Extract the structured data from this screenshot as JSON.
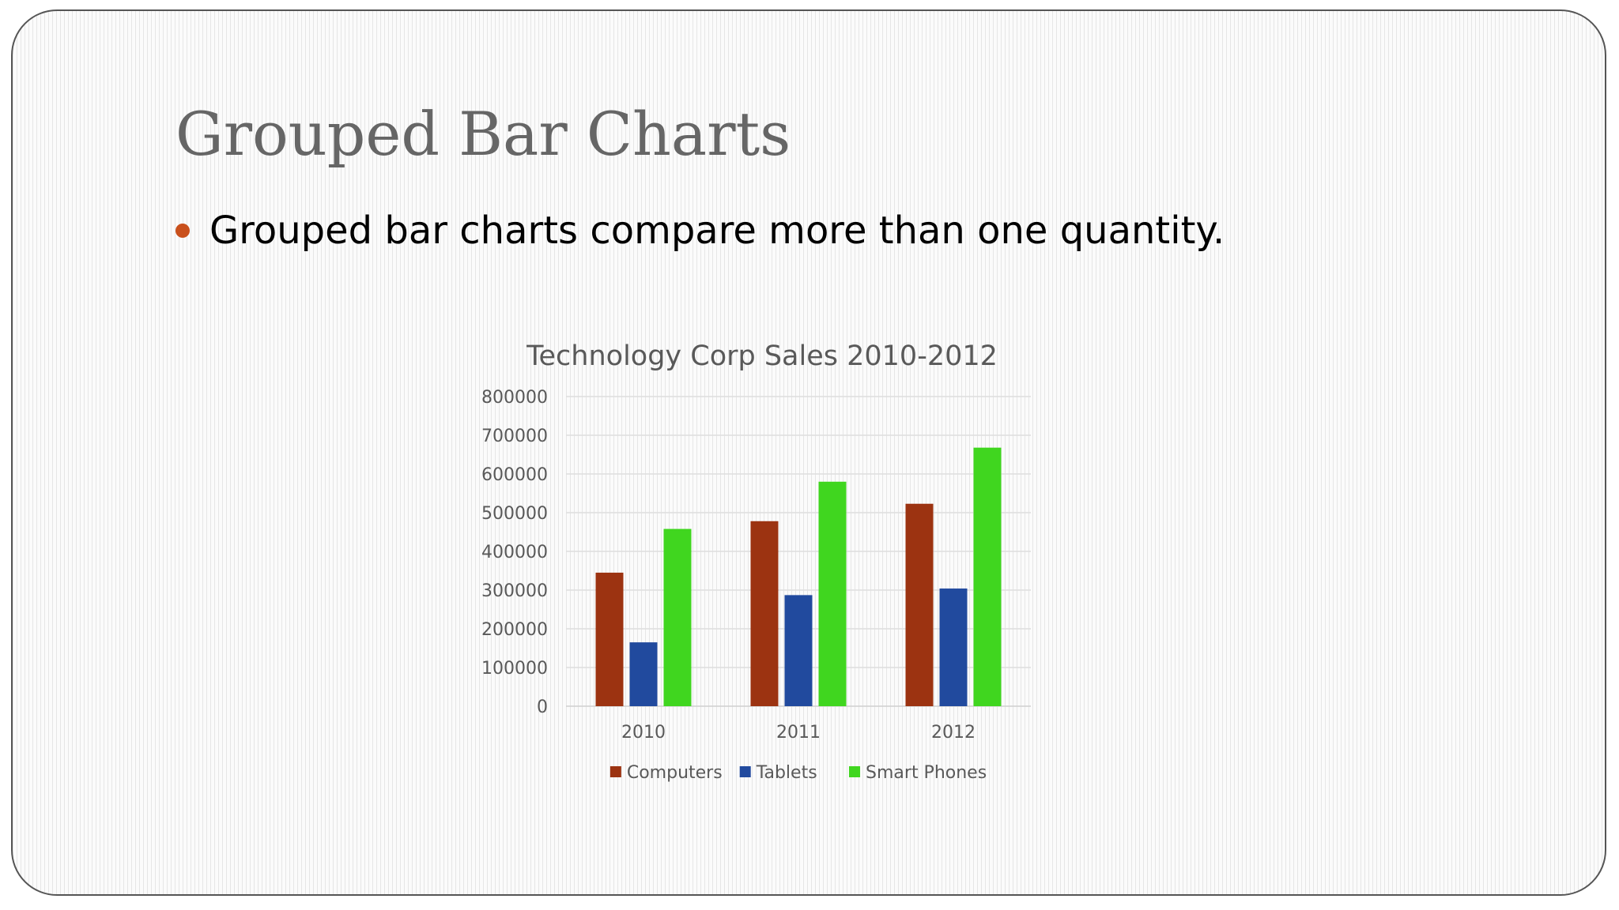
{
  "slide": {
    "title": "Grouped Bar Charts",
    "bullet": "Grouped bar charts compare more than one quantity.",
    "bullet_color": "#c9501c",
    "title_color": "#666666"
  },
  "chart_data": {
    "type": "bar",
    "title": "Technology Corp Sales 2010-2012",
    "categories": [
      "2010",
      "2011",
      "2012"
    ],
    "series": [
      {
        "name": "Computers",
        "color": "#9c3311",
        "values": [
          345000,
          478000,
          523000
        ]
      },
      {
        "name": "Tablets",
        "color": "#214a9e",
        "values": [
          165000,
          287000,
          304000
        ]
      },
      {
        "name": "Smart Phones",
        "color": "#40d61f",
        "values": [
          458000,
          580000,
          668000
        ]
      }
    ],
    "ylim": [
      0,
      800000
    ],
    "yticks": [
      "0",
      "100000",
      "200000",
      "300000",
      "400000",
      "500000",
      "600000",
      "700000",
      "800000"
    ],
    "grid": true,
    "legend": "bottom"
  }
}
